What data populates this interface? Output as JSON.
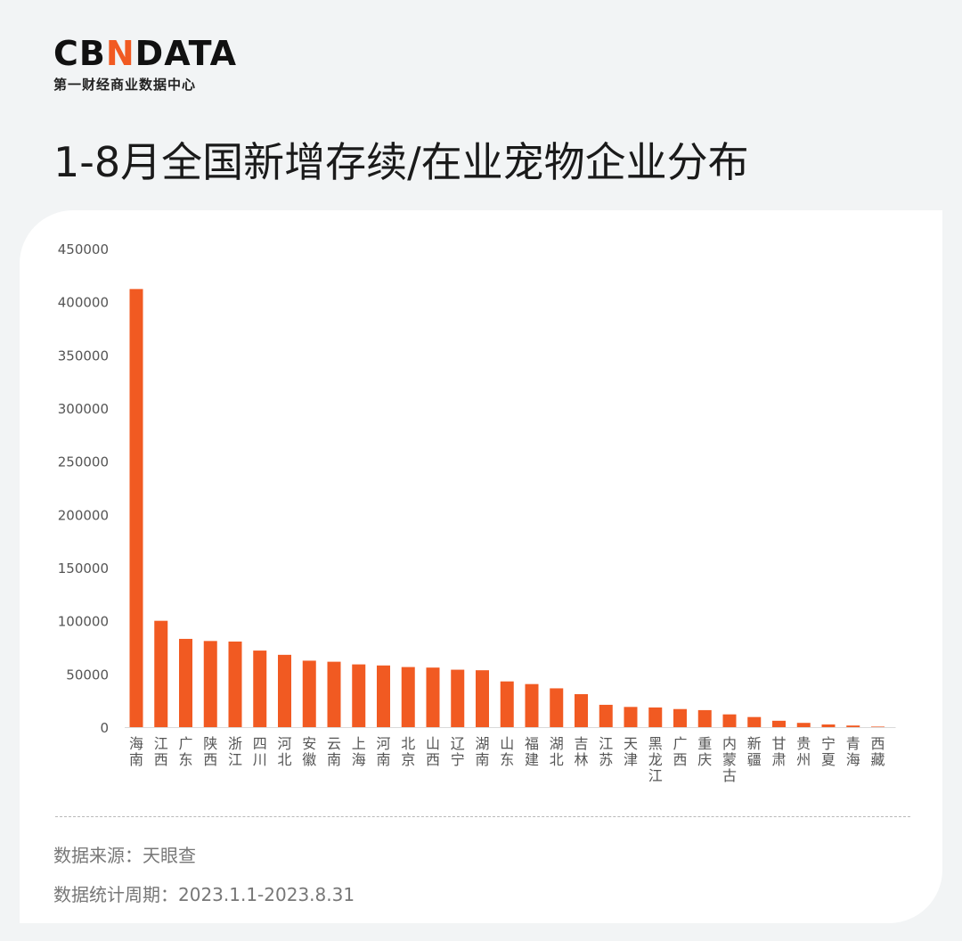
{
  "brand": {
    "logo_prefix": "CB",
    "logo_accent": "N",
    "logo_suffix": "DATA",
    "subtitle": "第一财经商业数据中心",
    "accent_color": "#f15a22"
  },
  "chart_title": "1-8月全国新增存续/在业宠物企业分布",
  "footer": {
    "source": "数据来源：天眼查",
    "period": "数据统计周期：2023.1.1-2023.8.31"
  },
  "chart_data": {
    "type": "bar",
    "title": "1-8月全国新增存续/在业宠物企业分布",
    "xlabel": "",
    "ylabel": "",
    "ylim": [
      0,
      450000
    ],
    "yticks": [
      0,
      50000,
      100000,
      150000,
      200000,
      250000,
      300000,
      350000,
      400000,
      450000
    ],
    "bar_color": "#f15a22",
    "grid": false,
    "categories": [
      "海南",
      "江西",
      "广东",
      "陕西",
      "浙江",
      "四川",
      "河北",
      "安徽",
      "云南",
      "上海",
      "河南",
      "北京",
      "山西",
      "辽宁",
      "湖南",
      "山东",
      "福建",
      "湖北",
      "吉林",
      "江苏",
      "天津",
      "黑龙江",
      "广西",
      "重庆",
      "内蒙古",
      "新疆",
      "甘肃",
      "贵州",
      "宁夏",
      "青海",
      "西藏"
    ],
    "values": [
      412000,
      100000,
      83000,
      81000,
      80500,
      72000,
      68000,
      62500,
      61500,
      59000,
      58000,
      56500,
      56000,
      54000,
      53500,
      43000,
      40500,
      36500,
      31000,
      21000,
      19000,
      18500,
      17000,
      16000,
      12000,
      9500,
      6000,
      4000,
      2500,
      1500,
      500
    ]
  }
}
